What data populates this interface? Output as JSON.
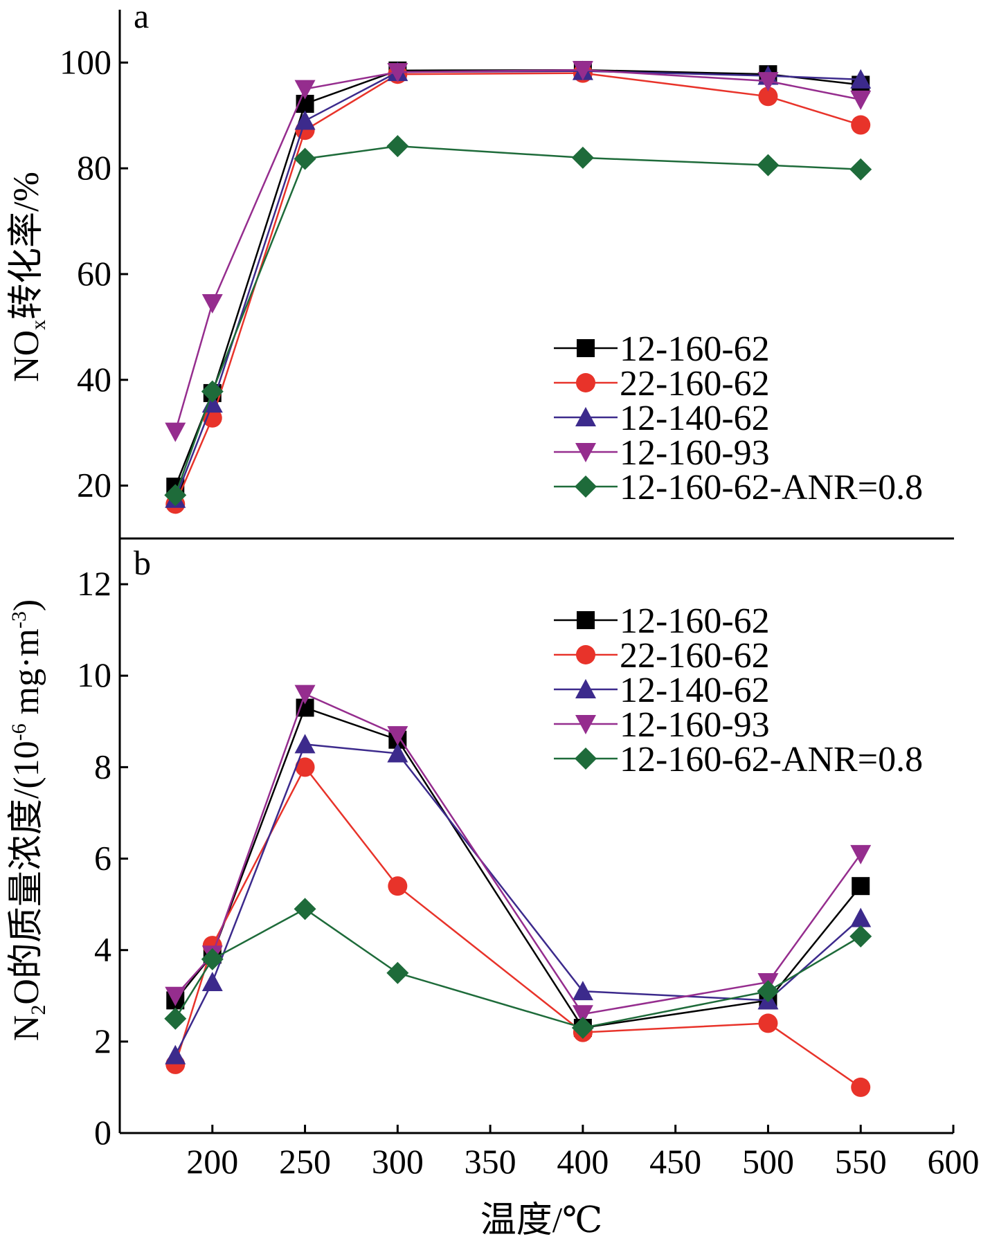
{
  "chart_data": [
    {
      "type": "line",
      "panel_label": "a",
      "ylabel": {
        "main": "NO",
        "sub": "x",
        "rest": "转化率/%"
      },
      "ylim": [
        10,
        110
      ],
      "yticks": [
        20,
        40,
        60,
        80,
        100
      ],
      "x": [
        180,
        200,
        250,
        300,
        400,
        500,
        550
      ],
      "xlim": [
        150,
        600
      ],
      "legend_position": "lower-right",
      "series": [
        {
          "name": "12-160-62",
          "color": "#000000",
          "marker": "square",
          "values": [
            19.8,
            37.5,
            92.2,
            98.5,
            98.6,
            97.8,
            95.8
          ]
        },
        {
          "name": "22-160-62",
          "color": "#e8332a",
          "marker": "circle",
          "values": [
            16.5,
            32.8,
            87.2,
            97.8,
            98.0,
            93.6,
            88.2
          ]
        },
        {
          "name": "12-140-62",
          "color": "#3c2a8c",
          "marker": "triangle-up",
          "values": [
            17.5,
            35.5,
            89.0,
            98.2,
            98.4,
            97.5,
            96.8
          ]
        },
        {
          "name": "12-160-93",
          "color": "#952d8e",
          "marker": "triangle-down",
          "values": [
            30.2,
            54.5,
            95.0,
            98.2,
            98.6,
            96.5,
            93.0
          ]
        },
        {
          "name": "12-160-62-ANR=0.8",
          "color": "#1e6b3a",
          "marker": "diamond",
          "values": [
            18.2,
            37.8,
            81.8,
            84.2,
            82.0,
            80.6,
            79.8
          ]
        }
      ]
    },
    {
      "type": "line",
      "panel_label": "b",
      "ylabel": {
        "main": "N",
        "sub": "2",
        "rest": "O的质量浓度/(10",
        "sup": "-6",
        "rest2": " mg·m",
        "sup2": "-3",
        "end": ")"
      },
      "xlabel": "温度/℃",
      "ylim": [
        0,
        13
      ],
      "yticks": [
        0,
        2,
        4,
        6,
        8,
        10,
        12
      ],
      "x": [
        180,
        200,
        250,
        300,
        400,
        500,
        550
      ],
      "xlim": [
        150,
        600
      ],
      "xticks": [
        200,
        250,
        300,
        350,
        400,
        450,
        500,
        550,
        600
      ],
      "legend_position": "top-right",
      "series": [
        {
          "name": "12-160-62",
          "color": "#000000",
          "marker": "square",
          "values": [
            2.9,
            3.9,
            9.3,
            8.6,
            2.3,
            2.9,
            5.4
          ]
        },
        {
          "name": "22-160-62",
          "color": "#e8332a",
          "marker": "circle",
          "values": [
            1.5,
            4.1,
            8.0,
            5.4,
            2.2,
            2.4,
            1.0
          ]
        },
        {
          "name": "12-140-62",
          "color": "#3c2a8c",
          "marker": "triangle-up",
          "values": [
            1.7,
            3.3,
            8.5,
            8.3,
            3.1,
            2.9,
            4.7
          ]
        },
        {
          "name": "12-160-93",
          "color": "#952d8e",
          "marker": "triangle-down",
          "values": [
            3.0,
            3.9,
            9.6,
            8.7,
            2.6,
            3.3,
            6.1
          ]
        },
        {
          "name": "12-160-62-ANR=0.8",
          "color": "#1e6b3a",
          "marker": "diamond",
          "values": [
            2.5,
            3.8,
            4.9,
            3.5,
            2.3,
            3.1,
            4.3
          ]
        }
      ]
    }
  ]
}
